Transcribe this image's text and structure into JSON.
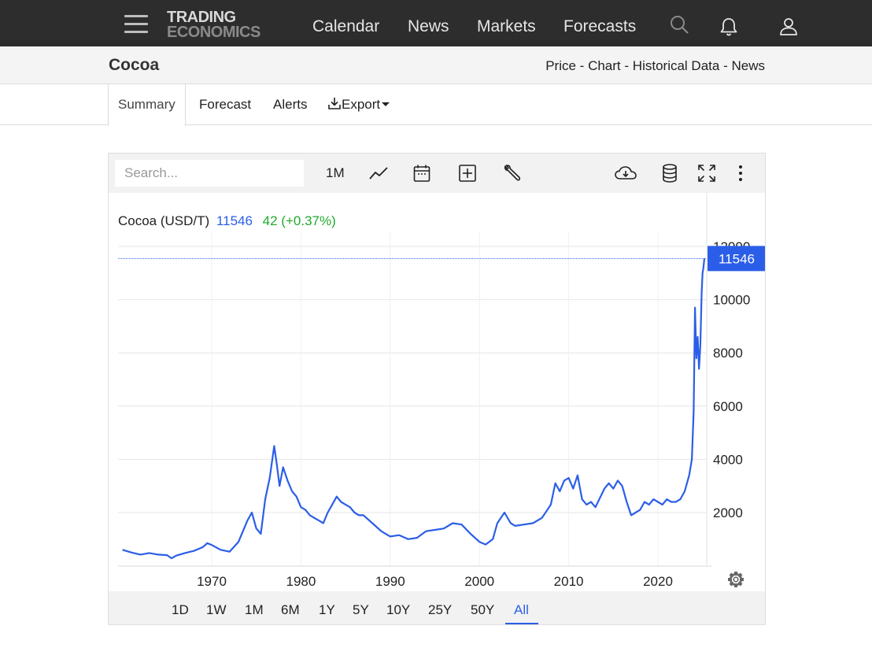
{
  "navbar": {
    "logo_line1": "TRADING",
    "logo_line2": "ECONOMICS",
    "links": [
      "Calendar",
      "News",
      "Markets",
      "Forecasts"
    ],
    "icons": [
      "menu-icon",
      "search-icon",
      "bell-icon",
      "user-icon"
    ]
  },
  "subheader": {
    "title": "Cocoa",
    "links": [
      "Price",
      "Chart",
      "Historical Data",
      "News"
    ],
    "separator": "-"
  },
  "tabs": {
    "items": [
      "Summary",
      "Forecast",
      "Alerts",
      "Export"
    ],
    "active": "Summary"
  },
  "toolbar": {
    "search_placeholder": "Search...",
    "interval": "1M",
    "icons": [
      "line-chart-icon",
      "calendar-icon",
      "compare-icon",
      "wrench-icon",
      "download-icon",
      "database-icon",
      "fullscreen-icon",
      "more-icon"
    ]
  },
  "legend": {
    "name": "Cocoa (USD/T)",
    "price": "11546",
    "change": "42 (+0.37%)"
  },
  "ranges": {
    "items": [
      "1D",
      "1W",
      "1M",
      "6M",
      "1Y",
      "5Y",
      "10Y",
      "25Y",
      "50Y",
      "All"
    ],
    "active": "All"
  },
  "colors": {
    "line": "#2b5ee8",
    "change_positive": "#1faa2b",
    "navbar_bg": "#2d2d2d"
  },
  "chart_data": {
    "type": "line",
    "title": "",
    "xlabel": "",
    "ylabel": "",
    "xlim": [
      1959.5,
      2025.5
    ],
    "ylim": [
      0,
      12500
    ],
    "x_ticks": [
      1970,
      1980,
      1990,
      2000,
      2010,
      2020
    ],
    "y_ticks": [
      2000,
      4000,
      6000,
      8000,
      10000,
      12000
    ],
    "last_value_label": "11546",
    "grid": true,
    "series": [
      {
        "x": [
          1960.0,
          1961.0,
          1962.0,
          1963.0,
          1964.0,
          1965.0,
          1965.5,
          1966.0,
          1967.0,
          1968.0,
          1969.0,
          1969.5,
          1970.0,
          1971.0,
          1972.0,
          1973.0,
          1973.5,
          1974.0,
          1974.5,
          1975.0,
          1975.5,
          1976.0,
          1976.5,
          1977.0,
          1977.3,
          1977.6,
          1978.0,
          1978.5,
          1979.0,
          1979.5,
          1980.0,
          1980.5,
          1981.0,
          1981.5,
          1982.0,
          1982.5,
          1983.0,
          1983.5,
          1984.0,
          1984.5,
          1985.0,
          1985.5,
          1986.0,
          1986.5,
          1987.0,
          1988.0,
          1989.0,
          1990.0,
          1991.0,
          1992.0,
          1993.0,
          1994.0,
          1995.0,
          1996.0,
          1997.0,
          1998.0,
          1999.0,
          2000.0,
          2000.7,
          2001.5,
          2002.0,
          2002.8,
          2003.5,
          2004.0,
          2005.0,
          2006.0,
          2007.0,
          2008.0,
          2008.5,
          2009.0,
          2009.5,
          2010.0,
          2010.5,
          2011.0,
          2011.5,
          2012.0,
          2012.5,
          2013.0,
          2014.0,
          2014.5,
          2015.0,
          2015.5,
          2016.0,
          2016.5,
          2017.0,
          2017.5,
          2018.0,
          2018.5,
          2019.0,
          2019.5,
          2020.0,
          2020.5,
          2021.0,
          2021.5,
          2022.0,
          2022.5,
          2023.0,
          2023.5,
          2023.8,
          2024.0,
          2024.15,
          2024.3,
          2024.45,
          2024.6,
          2024.75,
          2024.9,
          2025.0,
          2025.1,
          2025.2
        ],
        "values": [
          600,
          500,
          420,
          480,
          420,
          400,
          280,
          380,
          480,
          560,
          700,
          850,
          780,
          600,
          530,
          900,
          1300,
          1700,
          2000,
          1400,
          1200,
          2500,
          3300,
          4500,
          3800,
          3000,
          3700,
          3200,
          2800,
          2600,
          2200,
          2100,
          1900,
          1800,
          1700,
          1600,
          2000,
          2300,
          2600,
          2400,
          2300,
          2200,
          2000,
          1900,
          1900,
          1600,
          1300,
          1100,
          1150,
          1000,
          1050,
          1300,
          1350,
          1400,
          1600,
          1550,
          1200,
          900,
          800,
          1000,
          1600,
          2000,
          1600,
          1500,
          1550,
          1600,
          1800,
          2300,
          3100,
          2800,
          3200,
          3300,
          2900,
          3400,
          2500,
          2300,
          2400,
          2200,
          2900,
          3100,
          2900,
          3200,
          3000,
          2400,
          1900,
          2000,
          2100,
          2400,
          2300,
          2500,
          2400,
          2300,
          2500,
          2400,
          2400,
          2500,
          2800,
          3400,
          4000,
          5800,
          9700,
          7800,
          8600,
          7400,
          8300,
          10300,
          11000,
          11200,
          11546
        ]
      }
    ]
  }
}
